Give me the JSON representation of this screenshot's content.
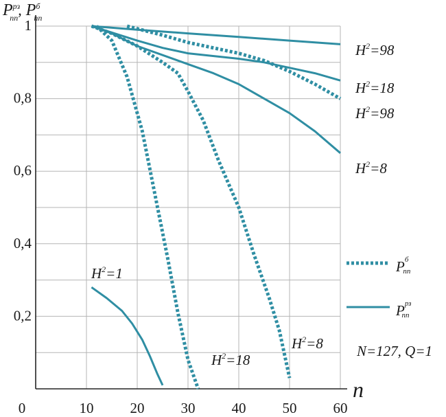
{
  "colors": {
    "series": "#2f8ea3",
    "grid": "#b5b5b5",
    "axis": "#222222"
  },
  "chart_data": {
    "type": "line",
    "y_axis_label": {
      "main": "P",
      "sup_a": "рз",
      "sub_a": "пп",
      "sep": ",",
      "sup_b": "б",
      "sub_b": "пп"
    },
    "x_axis_label": "n",
    "xlim": [
      0,
      60
    ],
    "ylim": [
      0,
      1
    ],
    "x_ticks": [
      {
        "v": 0,
        "label": "0"
      },
      {
        "v": 10,
        "label": "10"
      },
      {
        "v": 20,
        "label": "20"
      },
      {
        "v": 30,
        "label": "30"
      },
      {
        "v": 40,
        "label": "40"
      },
      {
        "v": 50,
        "label": "50"
      },
      {
        "v": 60,
        "label": "60"
      }
    ],
    "y_ticks": [
      {
        "v": 0.2,
        "label": "0,2"
      },
      {
        "v": 0.4,
        "label": "0,4"
      },
      {
        "v": 0.6,
        "label": "0,6"
      },
      {
        "v": 0.8,
        "label": "0,8"
      },
      {
        "v": 1,
        "label": "1"
      }
    ],
    "grid": true,
    "legend": {
      "position": "right",
      "entries": [
        {
          "style": "dotted",
          "main": "P",
          "sup": "б",
          "sub": "пп"
        },
        {
          "style": "solid",
          "main": "P",
          "sup": "рз",
          "sub": "пп"
        }
      ]
    },
    "note": "N=127, Q=1",
    "series": [
      {
        "style": "solid",
        "label": "H²=98",
        "points": [
          [
            11,
            1
          ],
          [
            20,
            0.99
          ],
          [
            30,
            0.98
          ],
          [
            40,
            0.97
          ],
          [
            50,
            0.96
          ],
          [
            60,
            0.95
          ]
        ]
      },
      {
        "style": "solid",
        "label": "H²=18",
        "points": [
          [
            11,
            1
          ],
          [
            20,
            0.96
          ],
          [
            25,
            0.94
          ],
          [
            30,
            0.925
          ],
          [
            40,
            0.91
          ],
          [
            45,
            0.9
          ],
          [
            50,
            0.885
          ],
          [
            55,
            0.87
          ],
          [
            60,
            0.85
          ]
        ]
      },
      {
        "style": "solid",
        "label": "H²=8",
        "points": [
          [
            11,
            1
          ],
          [
            15,
            0.98
          ],
          [
            20,
            0.945
          ],
          [
            25,
            0.92
          ],
          [
            30,
            0.895
          ],
          [
            35,
            0.87
          ],
          [
            40,
            0.84
          ],
          [
            45,
            0.8
          ],
          [
            50,
            0.76
          ],
          [
            55,
            0.71
          ],
          [
            60,
            0.65
          ]
        ]
      },
      {
        "style": "solid",
        "label": "H²=1",
        "points": [
          [
            11,
            0.28
          ],
          [
            14,
            0.25
          ],
          [
            17,
            0.215
          ],
          [
            19,
            0.18
          ],
          [
            21,
            0.135
          ],
          [
            22.5,
            0.09
          ],
          [
            24,
            0.04
          ],
          [
            25,
            0.01
          ]
        ]
      },
      {
        "style": "dotted",
        "label": "H²=98",
        "points": [
          [
            18,
            1
          ],
          [
            25,
            0.975
          ],
          [
            30,
            0.955
          ],
          [
            40,
            0.925
          ],
          [
            45,
            0.905
          ],
          [
            50,
            0.875
          ],
          [
            55,
            0.84
          ],
          [
            60,
            0.8
          ]
        ]
      },
      {
        "style": "dotted",
        "label": "H²=18",
        "points": [
          [
            11,
            1
          ],
          [
            15,
            0.98
          ],
          [
            20,
            0.945
          ],
          [
            25,
            0.9
          ],
          [
            28,
            0.87
          ],
          [
            30,
            0.82
          ],
          [
            33,
            0.74
          ],
          [
            36,
            0.63
          ],
          [
            40,
            0.5
          ],
          [
            43,
            0.37
          ],
          [
            46,
            0.25
          ],
          [
            48,
            0.16
          ],
          [
            50,
            0.03
          ]
        ]
      },
      {
        "style": "dotted",
        "label": "H²=8",
        "points": [
          [
            12,
            1
          ],
          [
            15,
            0.96
          ],
          [
            18,
            0.86
          ],
          [
            21,
            0.71
          ],
          [
            24,
            0.5
          ],
          [
            26,
            0.36
          ],
          [
            28,
            0.21
          ],
          [
            30,
            0.08
          ],
          [
            32,
            0
          ]
        ]
      }
    ],
    "series_labels": [
      {
        "main": "H",
        "sup": "2",
        "rest": "=98"
      },
      {
        "main": "H",
        "sup": "2",
        "rest": "=18"
      },
      {
        "main": "H",
        "sup": "2",
        "rest": "=98"
      },
      {
        "main": "H",
        "sup": "2",
        "rest": "=8"
      },
      {
        "main": "H",
        "sup": "2",
        "rest": "=1"
      },
      {
        "main": "H",
        "sup": "2",
        "rest": "=18"
      },
      {
        "main": "H",
        "sup": "2",
        "rest": "=8"
      }
    ]
  }
}
